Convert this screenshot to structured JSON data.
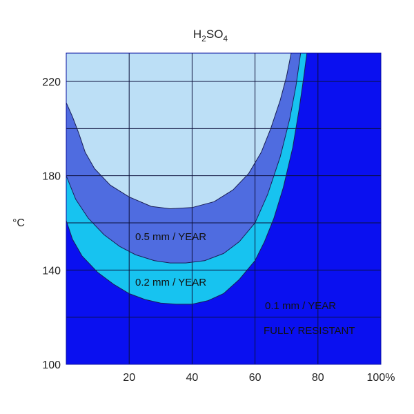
{
  "chart_data": {
    "type": "area",
    "title": {
      "main": "H",
      "sub1": "2",
      "mid": "SO",
      "sub2": "4"
    },
    "ylabel": "°C",
    "xlim": [
      0,
      100
    ],
    "ylim": [
      100,
      232
    ],
    "x_ticks": [
      {
        "value": 20,
        "label": "20"
      },
      {
        "value": 40,
        "label": "40"
      },
      {
        "value": 60,
        "label": "60"
      },
      {
        "value": 80,
        "label": "80"
      },
      {
        "value": 100,
        "label": "100%"
      }
    ],
    "y_ticks": [
      {
        "value": 100,
        "label": "100"
      },
      {
        "value": 140,
        "label": "140"
      },
      {
        "value": 180,
        "label": "180"
      },
      {
        "value": 220,
        "label": "220"
      }
    ],
    "grid_x": [
      20,
      40,
      60,
      80
    ],
    "grid_y": [
      120,
      140,
      160,
      180,
      200,
      220
    ],
    "background_region": {
      "label": "FULLY RESISTANT",
      "color": "#0a10f0"
    },
    "series": [
      {
        "name": "0.1 mm / YEAR",
        "color": "#17c3f0",
        "boundary": [
          [
            0,
            161
          ],
          [
            2,
            153
          ],
          [
            5,
            146
          ],
          [
            10,
            139
          ],
          [
            15,
            134
          ],
          [
            20,
            130
          ],
          [
            25,
            127.5
          ],
          [
            30,
            126
          ],
          [
            35,
            125.5
          ],
          [
            40,
            125.5
          ],
          [
            45,
            127
          ],
          [
            50,
            130
          ],
          [
            55,
            136
          ],
          [
            60,
            144
          ],
          [
            63,
            152
          ],
          [
            66,
            162
          ],
          [
            69,
            175
          ],
          [
            72,
            192
          ],
          [
            74,
            208
          ],
          [
            75.5,
            222
          ],
          [
            76.5,
            232
          ]
        ]
      },
      {
        "name": "0.2 mm / YEAR",
        "color": "#4f6ce0",
        "boundary": [
          [
            0,
            180
          ],
          [
            3,
            170
          ],
          [
            7,
            162
          ],
          [
            12,
            155
          ],
          [
            17,
            150
          ],
          [
            22,
            146.5
          ],
          [
            28,
            144
          ],
          [
            33,
            143
          ],
          [
            38,
            143
          ],
          [
            44,
            144
          ],
          [
            50,
            147
          ],
          [
            55,
            152
          ],
          [
            60,
            160
          ],
          [
            64,
            172
          ],
          [
            68,
            188
          ],
          [
            71,
            204
          ],
          [
            73,
            218
          ],
          [
            74.5,
            232
          ]
        ]
      },
      {
        "name": "0.5 mm / YEAR",
        "color": "#bcdff6",
        "boundary": [
          [
            0,
            211
          ],
          [
            2,
            205
          ],
          [
            4,
            198
          ],
          [
            6,
            190
          ],
          [
            9,
            183
          ],
          [
            14,
            176
          ],
          [
            20,
            171
          ],
          [
            27,
            167
          ],
          [
            33,
            166
          ],
          [
            40,
            166.5
          ],
          [
            47,
            169
          ],
          [
            53,
            174
          ],
          [
            58,
            181
          ],
          [
            62,
            190
          ],
          [
            65,
            200
          ],
          [
            68,
            212
          ],
          [
            70,
            222
          ],
          [
            71.5,
            232
          ]
        ]
      }
    ]
  }
}
